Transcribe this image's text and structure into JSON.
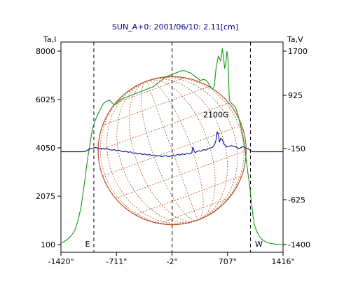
{
  "chart_data": {
    "type": "line",
    "title": "SUN_A+0: 2001/06/10: 2.11[cm]",
    "left_axis_label": "Ta,I",
    "right_axis_label": "Ta,V",
    "x_ticks": [
      "-1420\"",
      "-711\"",
      "-2\"",
      "707\"",
      "1416\""
    ],
    "x_tick_values": [
      -1420,
      -711,
      -2,
      707,
      1416
    ],
    "xlim": [
      -1420,
      1416
    ],
    "left_ticks": [
      "8000",
      "6025",
      "4050",
      "2075",
      "100"
    ],
    "left_tick_values": [
      8000,
      6025,
      4050,
      2075,
      100
    ],
    "ylim_left": [
      100,
      8000
    ],
    "right_ticks": [
      "1700",
      "925",
      "-150",
      "-625",
      "-1400"
    ],
    "right_tick_values": [
      1700,
      925,
      -150,
      -625,
      -1400
    ],
    "markers": {
      "east": {
        "label": "E",
        "x": -1000
      },
      "west": {
        "label": "W",
        "x": 1000
      },
      "center": {
        "x": 0
      }
    },
    "annotation": {
      "text": "2100G",
      "x": 560,
      "y_left": 5300
    },
    "solar_disk": {
      "center_x": 0,
      "radius_arcsec": 945,
      "color": "#b5522a"
    },
    "grid": false,
    "series": [
      {
        "axis": "left",
        "color": "#119911",
        "x": [
          -1420,
          -1390,
          -1360,
          -1320,
          -1280,
          -1240,
          -1200,
          -1160,
          -1120,
          -1080,
          -1050,
          -1030,
          -1010,
          -990,
          -960,
          -920,
          -880,
          -840,
          -800,
          -770,
          -740,
          -710,
          -680,
          -640,
          -600,
          -560,
          -520,
          -480,
          -440,
          -400,
          -360,
          -320,
          -280,
          -240,
          -200,
          -160,
          -120,
          -80,
          -40,
          0,
          40,
          80,
          120,
          160,
          200,
          240,
          280,
          320,
          360,
          400,
          440,
          460,
          480,
          500,
          520,
          540,
          560,
          590,
          620,
          640,
          655,
          670,
          685,
          700,
          715,
          730,
          750,
          780,
          810,
          840,
          870,
          900,
          930,
          960,
          990,
          1010,
          1030,
          1050,
          1080,
          1110,
          1150,
          1190,
          1230,
          1270,
          1310,
          1350,
          1390,
          1416
        ],
        "y": [
          150,
          200,
          260,
          360,
          500,
          700,
          1100,
          1700,
          2600,
          3600,
          4200,
          4600,
          4900,
          5100,
          5350,
          5600,
          5850,
          5950,
          6000,
          5900,
          5800,
          5850,
          5950,
          6050,
          6100,
          6150,
          6200,
          6250,
          6300,
          6350,
          6400,
          6450,
          6500,
          6550,
          6650,
          6750,
          6850,
          6950,
          7000,
          7050,
          7100,
          7150,
          7200,
          7200,
          7150,
          7100,
          7000,
          6900,
          6800,
          6850,
          6800,
          6700,
          6600,
          6500,
          6450,
          6600,
          7300,
          7800,
          7600,
          8100,
          7800,
          7300,
          7500,
          8000,
          7600,
          6000,
          5900,
          5800,
          5700,
          5400,
          5000,
          4600,
          4000,
          3200,
          2500,
          1900,
          1300,
          900,
          650,
          450,
          300,
          220,
          170,
          140,
          120,
          110,
          100,
          100
        ]
      },
      {
        "axis": "right",
        "color": "#0a0a8c",
        "x": [
          -1420,
          -1350,
          -1300,
          -1250,
          -1200,
          -1150,
          -1100,
          -1070,
          -1040,
          -1010,
          -980,
          -950,
          -920,
          -890,
          -860,
          -830,
          -800,
          -770,
          -740,
          -710,
          -680,
          -650,
          -620,
          -590,
          -560,
          -530,
          -500,
          -470,
          -440,
          -410,
          -380,
          -350,
          -320,
          -290,
          -260,
          -230,
          -200,
          -170,
          -140,
          -110,
          -80,
          -50,
          -20,
          10,
          40,
          70,
          100,
          130,
          160,
          190,
          220,
          250,
          265,
          280,
          295,
          310,
          340,
          370,
          400,
          430,
          460,
          490,
          520,
          545,
          560,
          575,
          590,
          605,
          620,
          640,
          660,
          680,
          700,
          730,
          760,
          790,
          820,
          850,
          880,
          910,
          940,
          970,
          1000,
          1030,
          1060,
          1100,
          1150,
          1200,
          1250,
          1300,
          1350,
          1416
        ],
        "y": [
          -180,
          -180,
          -180,
          -180,
          -180,
          -180,
          -175,
          -160,
          -150,
          -140,
          -130,
          -140,
          -150,
          -145,
          -155,
          -150,
          -160,
          -165,
          -160,
          -170,
          -165,
          -175,
          -180,
          -175,
          -185,
          -180,
          -195,
          -190,
          -200,
          -195,
          -205,
          -200,
          -210,
          -205,
          -215,
          -210,
          -220,
          -215,
          -225,
          -220,
          -215,
          -225,
          -220,
          -210,
          -215,
          -205,
          -210,
          -200,
          -205,
          -195,
          -200,
          -190,
          -120,
          -170,
          -190,
          -180,
          -170,
          -175,
          -160,
          -165,
          -150,
          -140,
          -120,
          -60,
          20,
          190,
          130,
          -20,
          60,
          30,
          -60,
          -80,
          -120,
          -100,
          -90,
          -110,
          -120,
          -150,
          -130,
          -110,
          -140,
          -150,
          -170,
          -180,
          -180,
          -180,
          -180,
          -180,
          -180,
          -180,
          -180,
          -180
        ]
      }
    ]
  }
}
